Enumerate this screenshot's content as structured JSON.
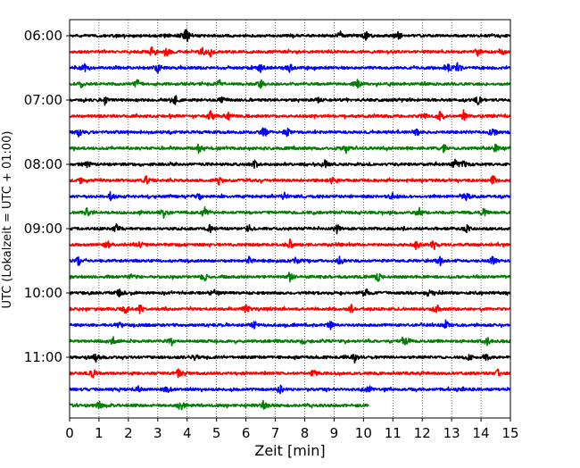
{
  "chart_data": {
    "type": "line",
    "title": "",
    "xlabel": "Zeit  [min]",
    "ylabel": "UTC (Lokalzeit = UTC + 01:00)",
    "xlim": [
      0,
      15
    ],
    "x_ticks": [
      "0",
      "1",
      "2",
      "3",
      "4",
      "5",
      "6",
      "7",
      "8",
      "9",
      "10",
      "11",
      "12",
      "13",
      "14",
      "15"
    ],
    "y_ticks": [
      "06:00",
      "07:00",
      "08:00",
      "09:00",
      "10:00",
      "11:00"
    ],
    "grid": "vertical dotted",
    "colors": [
      "#000000",
      "#ff0000",
      "#0000ff",
      "#008000"
    ],
    "rows": [
      {
        "start": "06:00",
        "color": "#000000",
        "end_min": 15,
        "events": [
          3.9,
          4.0,
          9.2,
          10.1,
          11.2
        ]
      },
      {
        "start": "06:15",
        "color": "#ff0000",
        "end_min": 15,
        "events": [
          2.8,
          3.3,
          4.5,
          4.8,
          13.9,
          14.7
        ]
      },
      {
        "start": "06:30",
        "color": "#0000ff",
        "end_min": 15,
        "events": [
          0.5,
          3.0,
          6.5,
          7.5,
          12.9,
          13.2
        ]
      },
      {
        "start": "06:45",
        "color": "#008000",
        "end_min": 15,
        "events": [
          0.4,
          2.3,
          5.1,
          6.5,
          9.8
        ]
      },
      {
        "start": "07:00",
        "color": "#000000",
        "end_min": 15,
        "events": [
          1.2,
          3.6,
          5.2,
          8.5,
          13.9
        ]
      },
      {
        "start": "07:15",
        "color": "#ff0000",
        "end_min": 15,
        "events": [
          4.8,
          5.4,
          12.1,
          12.6,
          13.4
        ]
      },
      {
        "start": "07:30",
        "color": "#0000ff",
        "end_min": 15,
        "events": [
          0.3,
          6.6,
          7.4,
          11.8,
          14.4
        ]
      },
      {
        "start": "07:45",
        "color": "#008000",
        "end_min": 15,
        "events": [
          4.4,
          9.4,
          12.7,
          14.5
        ]
      },
      {
        "start": "08:00",
        "color": "#000000",
        "end_min": 15,
        "events": [
          0.6,
          6.3,
          8.7,
          13.1,
          13.4
        ]
      },
      {
        "start": "08:15",
        "color": "#ff0000",
        "end_min": 15,
        "events": [
          0.4,
          2.6,
          5.1,
          8.9,
          14.4
        ]
      },
      {
        "start": "08:30",
        "color": "#0000ff",
        "end_min": 15,
        "events": [
          1.4,
          4.4,
          7.3,
          11.0,
          13.5
        ]
      },
      {
        "start": "08:45",
        "color": "#008000",
        "end_min": 15,
        "events": [
          0.6,
          3.2,
          4.6,
          11.9,
          14.1
        ]
      },
      {
        "start": "09:00",
        "color": "#000000",
        "end_min": 15,
        "events": [
          1.6,
          4.8,
          6.1,
          9.1,
          13.5
        ]
      },
      {
        "start": "09:15",
        "color": "#ff0000",
        "end_min": 15,
        "events": [
          1.3,
          2.4,
          7.5,
          11.8,
          12.4
        ]
      },
      {
        "start": "09:30",
        "color": "#0000ff",
        "end_min": 15,
        "events": [
          0.3,
          6.1,
          7.7,
          9.2,
          12.6,
          14.4
        ]
      },
      {
        "start": "09:45",
        "color": "#008000",
        "end_min": 15,
        "events": [
          2.1,
          4.6,
          7.5,
          10.5
        ]
      },
      {
        "start": "10:00",
        "color": "#000000",
        "end_min": 15,
        "events": [
          1.7,
          4.9,
          10.1,
          12.2
        ]
      },
      {
        "start": "10:15",
        "color": "#ff0000",
        "end_min": 15,
        "events": [
          1.9,
          2.4,
          6.0,
          9.6,
          12.5
        ]
      },
      {
        "start": "10:30",
        "color": "#0000ff",
        "end_min": 15,
        "events": [
          1.7,
          6.3,
          8.9,
          12.8
        ]
      },
      {
        "start": "10:45",
        "color": "#008000",
        "end_min": 15,
        "events": [
          1.5,
          3.5,
          8.0,
          11.4,
          14.2
        ]
      },
      {
        "start": "11:00",
        "color": "#000000",
        "end_min": 15,
        "events": [
          0.9,
          4.3,
          9.7,
          13.6,
          14.2
        ]
      },
      {
        "start": "11:15",
        "color": "#ff0000",
        "end_min": 15,
        "events": [
          0.8,
          3.7,
          8.3,
          14.6
        ]
      },
      {
        "start": "11:30",
        "color": "#0000ff",
        "end_min": 15,
        "events": [
          2.3,
          3.3,
          7.2,
          10.2,
          13.3
        ]
      },
      {
        "start": "11:45",
        "color": "#008000",
        "end_min": 10.2,
        "events": [
          1.0,
          3.8,
          6.6
        ]
      }
    ]
  }
}
